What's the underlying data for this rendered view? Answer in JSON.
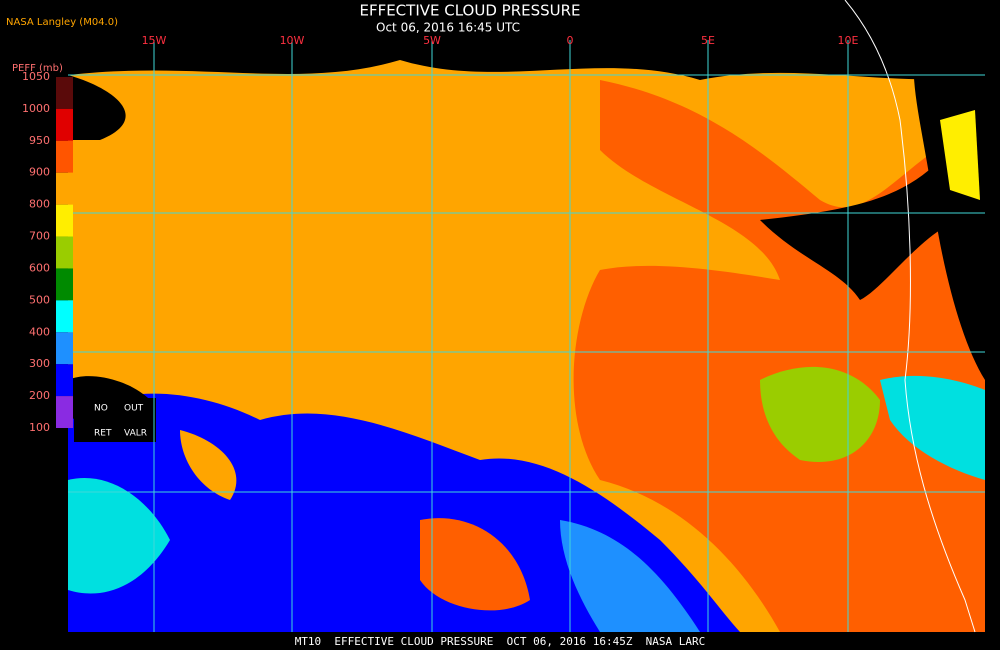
{
  "header": {
    "title": "EFFECTIVE CLOUD PRESSURE",
    "subtitle": "Oct 06, 2016 16:45 UTC",
    "source": "NASA Langley (M04.0)"
  },
  "legend": {
    "title": "PEFF (mb)",
    "labels": [
      "1050",
      "1000",
      "950",
      "900",
      "800",
      "700",
      "600",
      "500",
      "400",
      "300",
      "200",
      "100"
    ],
    "colors": [
      "#5a0a0a",
      "#e00000",
      "#ff5500",
      "#ffa500",
      "#ffee00",
      "#9acd00",
      "#008a00",
      "#00ffff",
      "#1e90ff",
      "#0000ff",
      "#8a2be2"
    ],
    "flags": [
      "NO",
      "OUT",
      "RET",
      "VALR"
    ]
  },
  "grid": {
    "lon_labels": [
      "15W",
      "10W",
      "5W",
      "0",
      "5E",
      "10E"
    ]
  },
  "footer": "MT10  EFFECTIVE CLOUD PRESSURE  OCT 06, 2016 16:45Z  NASA LARC"
}
